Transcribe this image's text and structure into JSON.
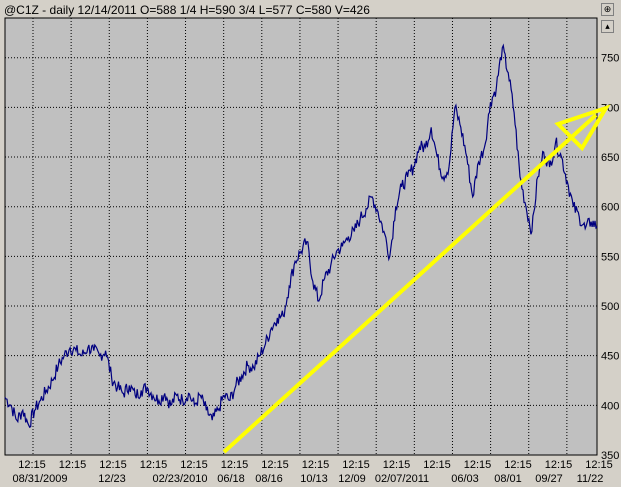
{
  "header": {
    "title": "@C1Z - daily 12/14/2011 O=588 1/4 H=590 3/4 L=577 C=580 V=426",
    "zoom_icon": "magnify-icon",
    "scroll_icon": "scroll-arrow-icon"
  },
  "colors": {
    "background": "#d4d0c8",
    "plot_bg": "#c0c0c0",
    "grid": "#000000",
    "price_line": "#00007f",
    "arrow": "#ffff00"
  },
  "chart_data": {
    "type": "line",
    "title": "@C1Z - daily 12/14/2011 O=588 1/4 H=590 3/4 L=577 C=580 V=426",
    "xlabel": "",
    "ylabel": "",
    "ylim": [
      350,
      790
    ],
    "y_ticks": [
      350,
      400,
      450,
      500,
      550,
      600,
      650,
      700,
      750
    ],
    "x_time_labels": [
      "12:15",
      "12:15",
      "12:15",
      "12:15",
      "12:15",
      "12:15",
      "12:15",
      "12:15",
      "12:15",
      "12:15",
      "12:15",
      "12:15",
      "12:15",
      "12:15",
      "12:15"
    ],
    "x_date_labels": [
      "08/31/2009",
      "12/23",
      "02/23/2010",
      "06/18",
      "08/16",
      "10/13",
      "12/09",
      "02/07/2011",
      "06/03",
      "08/01",
      "09/27",
      "11/22"
    ],
    "x_range": [
      0,
      100
    ],
    "grid": true,
    "series": [
      {
        "values": [
          [
            0,
            408
          ],
          [
            1,
            400
          ],
          [
            2,
            385
          ],
          [
            3,
            395
          ],
          [
            4,
            380
          ],
          [
            5,
            395
          ],
          [
            6,
            405
          ],
          [
            7,
            415
          ],
          [
            8,
            425
          ],
          [
            9,
            440
          ],
          [
            10,
            450
          ],
          [
            11,
            458
          ],
          [
            12,
            455
          ],
          [
            13,
            450
          ],
          [
            14,
            458
          ],
          [
            15,
            455
          ],
          [
            16,
            450
          ],
          [
            17,
            455
          ],
          [
            18,
            428
          ],
          [
            19,
            418
          ],
          [
            20,
            412
          ],
          [
            21,
            420
          ],
          [
            22,
            410
          ],
          [
            23,
            415
          ],
          [
            24,
            418
          ],
          [
            25,
            410
          ],
          [
            26,
            405
          ],
          [
            27,
            412
          ],
          [
            28,
            400
          ],
          [
            29,
            410
          ],
          [
            30,
            405
          ],
          [
            31,
            412
          ],
          [
            32,
            400
          ],
          [
            33,
            410
          ],
          [
            34,
            395
          ],
          [
            35,
            385
          ],
          [
            36,
            395
          ],
          [
            37,
            410
          ],
          [
            38,
            405
          ],
          [
            39,
            420
          ],
          [
            40,
            430
          ],
          [
            41,
            440
          ],
          [
            42,
            438
          ],
          [
            43,
            450
          ],
          [
            44,
            462
          ],
          [
            45,
            478
          ],
          [
            46,
            488
          ],
          [
            47,
            490
          ],
          [
            48,
            520
          ],
          [
            49,
            545
          ],
          [
            50,
            555
          ],
          [
            51,
            565
          ],
          [
            52,
            525
          ],
          [
            53,
            505
          ],
          [
            54,
            528
          ],
          [
            55,
            540
          ],
          [
            56,
            555
          ],
          [
            57,
            560
          ],
          [
            58,
            570
          ],
          [
            59,
            575
          ],
          [
            60,
            588
          ],
          [
            61,
            598
          ],
          [
            62,
            610
          ],
          [
            63,
            595
          ],
          [
            64,
            575
          ],
          [
            65,
            550
          ],
          [
            66,
            600
          ],
          [
            67,
            620
          ],
          [
            68,
            630
          ],
          [
            69,
            640
          ],
          [
            70,
            660
          ],
          [
            71,
            660
          ],
          [
            72,
            680
          ],
          [
            73,
            650
          ],
          [
            74,
            630
          ],
          [
            75,
            640
          ],
          [
            76,
            700
          ],
          [
            77,
            680
          ],
          [
            78,
            650
          ],
          [
            79,
            610
          ],
          [
            80,
            645
          ],
          [
            81,
            660
          ],
          [
            82,
            705
          ],
          [
            83,
            720
          ],
          [
            84,
            760
          ],
          [
            85,
            735
          ],
          [
            86,
            695
          ],
          [
            87,
            630
          ],
          [
            88,
            600
          ],
          [
            89,
            575
          ],
          [
            90,
            630
          ],
          [
            91,
            655
          ],
          [
            92,
            640
          ],
          [
            93,
            665
          ],
          [
            94,
            650
          ],
          [
            95,
            625
          ],
          [
            96,
            600
          ],
          [
            97,
            590
          ],
          [
            98,
            578
          ],
          [
            99,
            585
          ],
          [
            100,
            580
          ]
        ]
      }
    ]
  }
}
